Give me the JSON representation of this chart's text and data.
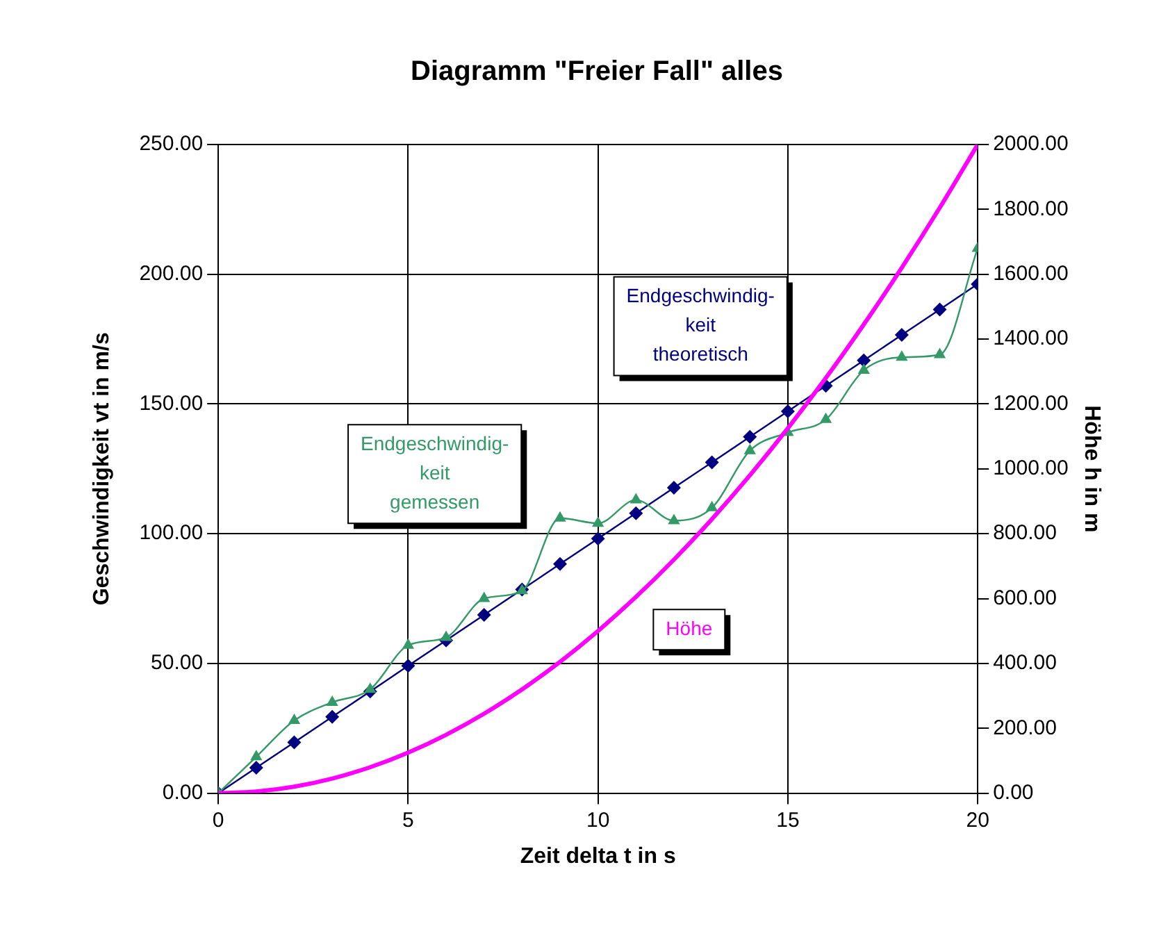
{
  "chart_data": {
    "type": "line",
    "title": "Diagramm \"Freier Fall\" alles",
    "xlabel": "Zeit delta t in s",
    "ylabel": "Geschwindigkeit vt in m/s",
    "y2label": "Höhe h in m",
    "x": [
      0,
      1,
      2,
      3,
      4,
      5,
      6,
      7,
      8,
      9,
      10,
      11,
      12,
      13,
      14,
      15,
      16,
      17,
      18,
      19,
      20
    ],
    "series": [
      {
        "name": "Endgeschwindig- keit theoretisch",
        "color": "#000080",
        "marker": "diamond",
        "values": [
          0,
          9.8,
          19.6,
          29.4,
          39.2,
          49.1,
          58.9,
          68.7,
          78.5,
          88.3,
          98.1,
          107.9,
          117.7,
          127.5,
          137.3,
          147.2,
          157,
          166.8,
          176.6,
          186.4,
          196.2
        ]
      },
      {
        "name": "Endgeschwindig- keit gemessen",
        "color": "#339966",
        "marker": "triangle",
        "values": [
          0,
          14,
          28,
          35,
          40,
          57,
          60,
          75,
          78,
          106,
          104,
          113,
          105,
          110,
          132,
          139,
          144,
          163,
          168,
          169,
          210
        ]
      },
      {
        "name": "Höhe",
        "color": "#ff00ff",
        "marker": "none",
        "axis": "y2",
        "values": [
          0,
          5,
          20,
          45,
          80,
          125,
          180,
          245,
          320,
          405,
          500,
          605,
          720,
          845,
          980,
          1125,
          1280,
          1445,
          1620,
          1805,
          2000
        ]
      }
    ],
    "xlim": [
      0,
      20
    ],
    "xticks": [
      0,
      5,
      10,
      15,
      20
    ],
    "ylim": [
      0,
      250
    ],
    "yticks": [
      {
        "value": 0,
        "label": "0.00"
      },
      {
        "value": 50,
        "label": "50.00"
      },
      {
        "value": 100,
        "label": "100.00"
      },
      {
        "value": 150,
        "label": "150.00"
      },
      {
        "value": 200,
        "label": "200.00"
      },
      {
        "value": 250,
        "label": "250.00"
      }
    ],
    "y2lim": [
      0,
      2000
    ],
    "y2ticks": [
      {
        "value": 0,
        "label": "0.00"
      },
      {
        "value": 200,
        "label": "200.00"
      },
      {
        "value": 400,
        "label": "400.00"
      },
      {
        "value": 600,
        "label": "600.00"
      },
      {
        "value": 800,
        "label": "800.00"
      },
      {
        "value": 1000,
        "label": "1000.00"
      },
      {
        "value": 1200,
        "label": "1200.00"
      },
      {
        "value": 1400,
        "label": "1400.00"
      },
      {
        "value": 1600,
        "label": "1600.00"
      },
      {
        "value": 1800,
        "label": "1800.00"
      },
      {
        "value": 2000,
        "label": "2000.00"
      }
    ],
    "grid": true,
    "legend": false,
    "line_style": "solid"
  }
}
